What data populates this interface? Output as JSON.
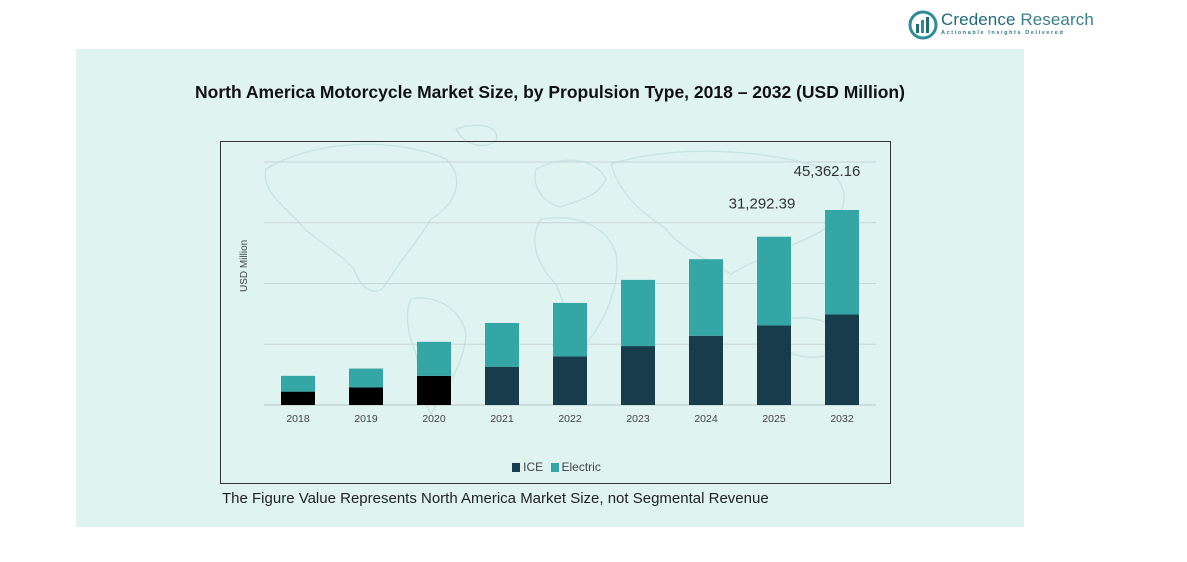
{
  "brand": {
    "name_part1": "Credence",
    "name_part2": "Research",
    "tagline": "Actionable Insights Delivered"
  },
  "footnote": "The Figure Value Represents North America Market Size, not Segmental Revenue",
  "colors": {
    "panel": "#dff3f1",
    "ice": "#173d4c",
    "ice_early": "#000000",
    "electric": "#35a6a6"
  },
  "chart_data": {
    "type": "bar",
    "stacked": true,
    "title": "North America Motorcycle Market Size, by Propulsion Type, 2018 – 2032 (USD Million)",
    "xlabel": "",
    "ylabel": "USD Million",
    "categories": [
      "2018",
      "2019",
      "2020",
      "2021",
      "2022",
      "2023",
      "2024",
      "2025",
      "2032"
    ],
    "series": [
      {
        "name": "ICE",
        "values": [
          2200,
          2900,
          4800,
          6300,
          8000,
          9700,
          11400,
          13100,
          14900
        ]
      },
      {
        "name": "Electric",
        "values": [
          2600,
          3100,
          5600,
          7200,
          8800,
          10900,
          12600,
          14600,
          17200
        ]
      }
    ],
    "data_labels": [
      {
        "category": "2025",
        "text": "31,292.39"
      },
      {
        "category": "2032",
        "text": "45,362.16"
      }
    ],
    "ylim": [
      0,
      40000
    ],
    "grid": true,
    "legend": "bottom-center"
  }
}
